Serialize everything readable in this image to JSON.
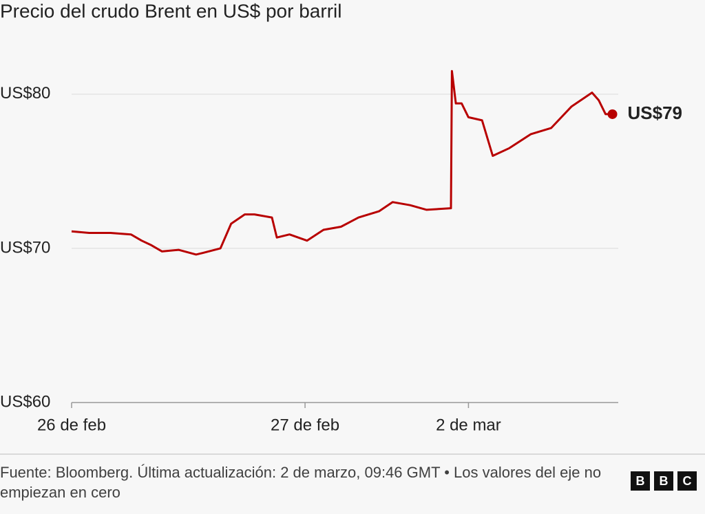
{
  "chart_data": {
    "type": "line",
    "title": "Precio del crudo Brent en US$ por barril",
    "x": [
      0,
      1.8,
      4.0,
      6.1,
      7.2,
      8.2,
      9.3,
      11.0,
      12.8,
      13.5,
      15.3,
      16.4,
      17.8,
      18.8,
      20.6,
      21.1,
      22.4,
      24.2,
      25.9,
      27.7,
      29.5,
      31.6,
      33.0,
      34.8,
      36.5,
      39.0,
      39.1,
      39.5,
      40.1,
      40.8,
      42.2,
      43.3,
      45.0,
      47.2,
      49.3,
      51.4,
      53.5,
      54.2,
      54.9,
      55.6
    ],
    "values": [
      71.1,
      71.0,
      71.0,
      70.9,
      70.5,
      70.2,
      69.8,
      69.9,
      69.6,
      69.7,
      70.0,
      71.6,
      72.2,
      72.2,
      72.0,
      70.7,
      70.9,
      70.5,
      71.2,
      71.4,
      72.0,
      72.4,
      73.0,
      72.8,
      72.5,
      72.6,
      81.5,
      79.4,
      79.4,
      78.5,
      78.3,
      76.0,
      76.5,
      77.4,
      77.8,
      79.2,
      80.1,
      79.6,
      78.7,
      78.7
    ],
    "color": "#b80000",
    "end_label": "US$79",
    "xlim": [
      0,
      56.2
    ],
    "xticks": [
      {
        "value": 0,
        "label": "26 de feb"
      },
      {
        "value": 24,
        "label": "27 de feb"
      },
      {
        "value": 40.8,
        "label": "2 de mar"
      }
    ],
    "ylim": [
      60,
      82
    ],
    "yticks": [
      {
        "value": 60,
        "label": "US$60"
      },
      {
        "value": 70,
        "label": "US$70"
      },
      {
        "value": 80,
        "label": "US$80"
      }
    ],
    "grid": true,
    "source": "Fuente: Bloomberg. Última actualización: 2 de marzo, 09:46 GMT • Los valores del eje no empiezan en cero",
    "logo": [
      "B",
      "B",
      "C"
    ]
  }
}
